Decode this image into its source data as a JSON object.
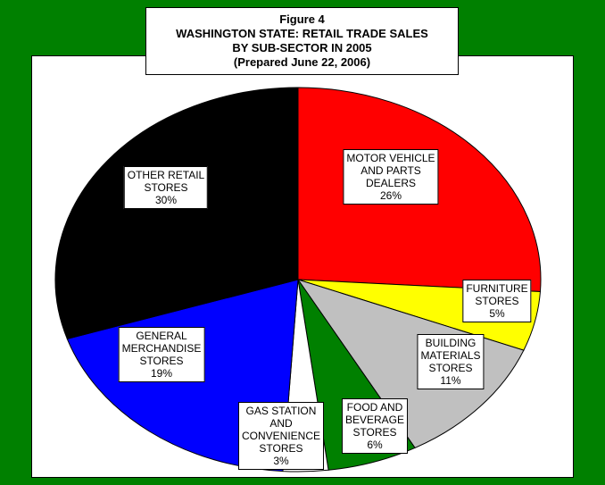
{
  "chart_data": {
    "type": "pie",
    "title": [
      "Figure 4",
      "WASHINGTON STATE: RETAIL TRADE SALES",
      "BY SUB-SECTOR IN 2005",
      "(Prepared June 22, 2006)"
    ],
    "categories": [
      "MOTOR VEHICLE\nAND PARTS\nDEALERS",
      "FURNITURE\nSTORES",
      "BUILDING\nMATERIALS\nSTORES",
      "FOOD AND\nBEVERAGE\nSTORES",
      "GAS STATION\nAND\nCONVENIENCE\nSTORES",
      "GENERAL\nMERCHANDISE\nSTORES",
      "OTHER RETAIL\nSTORES"
    ],
    "values": [
      26,
      5,
      11,
      6,
      3,
      19,
      30
    ],
    "value_labels": [
      "26%",
      "5%",
      "11%",
      "6%",
      "3%",
      "19%",
      "30%"
    ],
    "colors": [
      "#ff0000",
      "#ffff00",
      "#c0c0c0",
      "#008000",
      "#ffffff",
      "#0000ff",
      "#000000"
    ]
  }
}
